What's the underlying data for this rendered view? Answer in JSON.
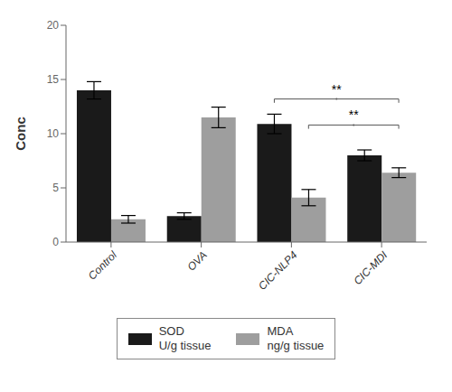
{
  "chart_data": {
    "type": "bar",
    "categories": [
      "Control",
      "OVA",
      "CIC-NLP4",
      "CIC-MDI"
    ],
    "series": [
      {
        "name": "SOD\nU/g tissue",
        "color": "#1a1a1a",
        "values": [
          14.0,
          2.4,
          10.9,
          8.0
        ],
        "errors": [
          0.8,
          0.3,
          0.9,
          0.5
        ]
      },
      {
        "name": "MDA\nng/g tissue",
        "color": "#9e9e9e",
        "values": [
          2.1,
          11.5,
          4.1,
          6.4
        ],
        "errors": [
          0.35,
          0.95,
          0.75,
          0.45
        ]
      }
    ],
    "ylabel": "Conc",
    "ylim": [
      0,
      20
    ],
    "yticks": [
      0,
      5,
      10,
      15,
      20
    ],
    "grid": false,
    "legend": "bottom",
    "annotations": [
      {
        "text": "**",
        "y": 13.2,
        "color": "#555555",
        "from": {
          "category": "CIC-NLP4",
          "series": "SOD\nU/g tissue"
        },
        "to": {
          "category": "CIC-MDI",
          "series": "MDA\nng/g tissue"
        }
      },
      {
        "text": "**",
        "y": 10.8,
        "color": "#555555",
        "from": {
          "category": "CIC-NLP4",
          "series": "MDA\nng/g tissue"
        },
        "to": {
          "category": "CIC-MDI",
          "series": "MDA\nng/g tissue"
        }
      }
    ]
  }
}
